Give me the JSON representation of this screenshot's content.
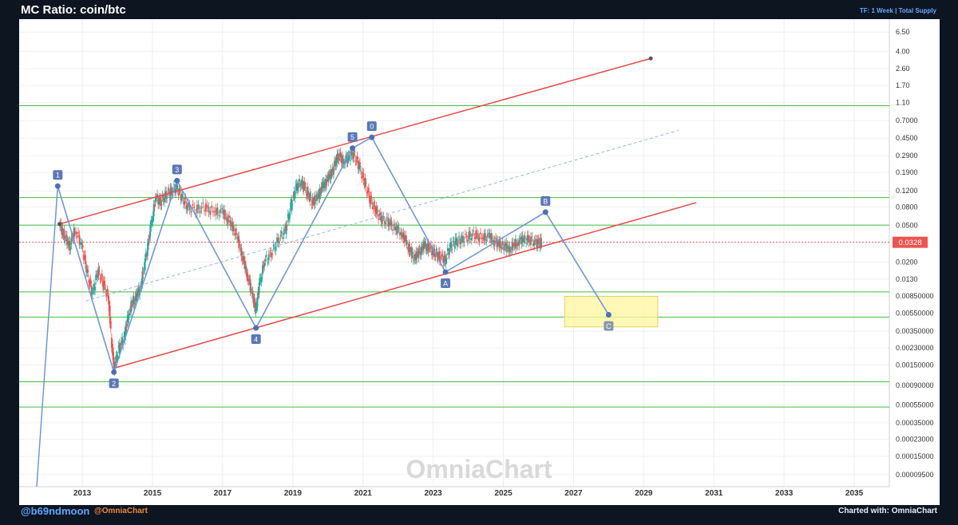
{
  "header": {
    "title": "MC Ratio: coin/btc",
    "meta": "TF: 1 Week | Total Supply"
  },
  "footer": {
    "handle": "@b69ndmoon",
    "brand": "@OmniaChart",
    "credit": "Charted with: OmniaChart"
  },
  "colors": {
    "background": "#0d1521",
    "plot": "#ffffff",
    "channel": "#e84a4a",
    "wave": "#6f97d6",
    "horizontal_levels": "#3fbf3f",
    "candle_up": "#26a69a",
    "candle_down": "#ef5350",
    "price_tag": "#ef5350",
    "target_zone": "#fff59d"
  },
  "chart_data": {
    "type": "line",
    "title": "MC Ratio: coin/btc",
    "xlabel": "",
    "ylabel": "",
    "y_scale": "log",
    "xlim": [
      2011.2,
      2036.0
    ],
    "ylim": [
      7e-05,
      9.0
    ],
    "grid": true,
    "watermark": "OmniaChart",
    "x_ticks": [
      "2013",
      "2015",
      "2017",
      "2019",
      "2021",
      "2023",
      "2025",
      "2027",
      "2029",
      "2031",
      "2033",
      "2035"
    ],
    "y_ticks": [
      "6.50",
      "4.00",
      "2.60",
      "1.70",
      "1.10",
      "0.7000",
      "0.4500",
      "0.2900",
      "0.1900",
      "0.1200",
      "0.0800",
      "0.0500",
      "0.0328",
      "0.0200",
      "0.0130",
      "0.00850000",
      "0.00550000",
      "0.00350000",
      "0.00230000",
      "0.00150000",
      "0.00090000",
      "0.00055000",
      "0.00035000",
      "0.00023000",
      "0.00015000",
      "0.00009500"
    ],
    "current_price": {
      "label": "0.0328",
      "value": 0.0328
    },
    "horizontal_levels": [
      1.02,
      0.101,
      0.0505,
      0.0094,
      0.005,
      0.00098,
      0.00052
    ],
    "wave_points": [
      {
        "label": "1",
        "x": 2012.3,
        "y": 0.135
      },
      {
        "label": "2",
        "x": 2013.9,
        "y": 0.00125
      },
      {
        "label": "3",
        "x": 2015.7,
        "y": 0.155
      },
      {
        "label": "4",
        "x": 2017.95,
        "y": 0.0038
      },
      {
        "label": "5",
        "x": 2020.7,
        "y": 0.35
      },
      {
        "label": "0",
        "x": 2021.25,
        "y": 0.46
      },
      {
        "label": "A",
        "x": 2023.35,
        "y": 0.0155
      },
      {
        "label": "B",
        "x": 2026.2,
        "y": 0.07
      },
      {
        "label": "C",
        "x": 2028.0,
        "y": 0.0053
      }
    ],
    "wave_lead_in": [
      {
        "x": 2011.7,
        "y": 7e-05
      },
      {
        "x": 2012.3,
        "y": 0.135
      }
    ],
    "channel_upper": [
      {
        "x": 2012.35,
        "y": 0.052
      },
      {
        "x": 2029.2,
        "y": 3.35
      }
    ],
    "channel_lower": [
      {
        "x": 2013.9,
        "y": 0.00138
      },
      {
        "x": 2030.5,
        "y": 0.089
      }
    ],
    "channel_mid": [
      {
        "x": 2013.1,
        "y": 0.0075
      },
      {
        "x": 2030.0,
        "y": 0.55
      }
    ],
    "target_zone": {
      "x_from": 2026.75,
      "x_to": 2029.4,
      "y_from": 0.0039,
      "y_to": 0.0084
    },
    "price_series": [
      [
        2012.35,
        0.052
      ],
      [
        2012.5,
        0.038
      ],
      [
        2012.65,
        0.03
      ],
      [
        2012.8,
        0.045
      ],
      [
        2013.0,
        0.03
      ],
      [
        2013.15,
        0.015
      ],
      [
        2013.3,
        0.009
      ],
      [
        2013.45,
        0.016
      ],
      [
        2013.6,
        0.012
      ],
      [
        2013.75,
        0.008
      ],
      [
        2013.9,
        0.0014
      ],
      [
        2014.05,
        0.0022
      ],
      [
        2014.2,
        0.003
      ],
      [
        2014.35,
        0.006
      ],
      [
        2014.5,
        0.008
      ],
      [
        2014.65,
        0.01
      ],
      [
        2014.8,
        0.02
      ],
      [
        2014.95,
        0.045
      ],
      [
        2015.1,
        0.1
      ],
      [
        2015.25,
        0.09
      ],
      [
        2015.4,
        0.11
      ],
      [
        2015.55,
        0.12
      ],
      [
        2015.7,
        0.13
      ],
      [
        2015.85,
        0.1
      ],
      [
        2016.0,
        0.08
      ],
      [
        2016.25,
        0.075
      ],
      [
        2016.5,
        0.08
      ],
      [
        2016.75,
        0.07
      ],
      [
        2017.0,
        0.07
      ],
      [
        2017.2,
        0.055
      ],
      [
        2017.4,
        0.04
      ],
      [
        2017.55,
        0.025
      ],
      [
        2017.7,
        0.015
      ],
      [
        2017.85,
        0.009
      ],
      [
        2017.95,
        0.0058
      ],
      [
        2018.05,
        0.011
      ],
      [
        2018.2,
        0.02
      ],
      [
        2018.4,
        0.025
      ],
      [
        2018.6,
        0.035
      ],
      [
        2018.8,
        0.045
      ],
      [
        2018.95,
        0.08
      ],
      [
        2019.1,
        0.13
      ],
      [
        2019.25,
        0.15
      ],
      [
        2019.4,
        0.12
      ],
      [
        2019.55,
        0.09
      ],
      [
        2019.7,
        0.1
      ],
      [
        2019.85,
        0.13
      ],
      [
        2020.0,
        0.16
      ],
      [
        2020.15,
        0.2
      ],
      [
        2020.3,
        0.3
      ],
      [
        2020.45,
        0.25
      ],
      [
        2020.6,
        0.28
      ],
      [
        2020.75,
        0.3
      ],
      [
        2020.9,
        0.22
      ],
      [
        2021.05,
        0.15
      ],
      [
        2021.2,
        0.1
      ],
      [
        2021.35,
        0.075
      ],
      [
        2021.5,
        0.06
      ],
      [
        2021.7,
        0.055
      ],
      [
        2021.9,
        0.048
      ],
      [
        2022.1,
        0.042
      ],
      [
        2022.3,
        0.03
      ],
      [
        2022.45,
        0.022
      ],
      [
        2022.6,
        0.025
      ],
      [
        2022.75,
        0.03
      ],
      [
        2022.9,
        0.028
      ],
      [
        2023.05,
        0.025
      ],
      [
        2023.2,
        0.023
      ],
      [
        2023.35,
        0.021
      ],
      [
        2023.5,
        0.03
      ],
      [
        2023.65,
        0.033
      ],
      [
        2023.8,
        0.035
      ],
      [
        2024.0,
        0.038
      ],
      [
        2024.2,
        0.04
      ],
      [
        2024.4,
        0.036
      ],
      [
        2024.6,
        0.038
      ],
      [
        2024.8,
        0.032
      ],
      [
        2025.0,
        0.03
      ],
      [
        2025.2,
        0.028
      ],
      [
        2025.4,
        0.033
      ],
      [
        2025.6,
        0.036
      ],
      [
        2025.8,
        0.034
      ],
      [
        2026.0,
        0.032
      ],
      [
        2026.1,
        0.0328
      ]
    ]
  }
}
